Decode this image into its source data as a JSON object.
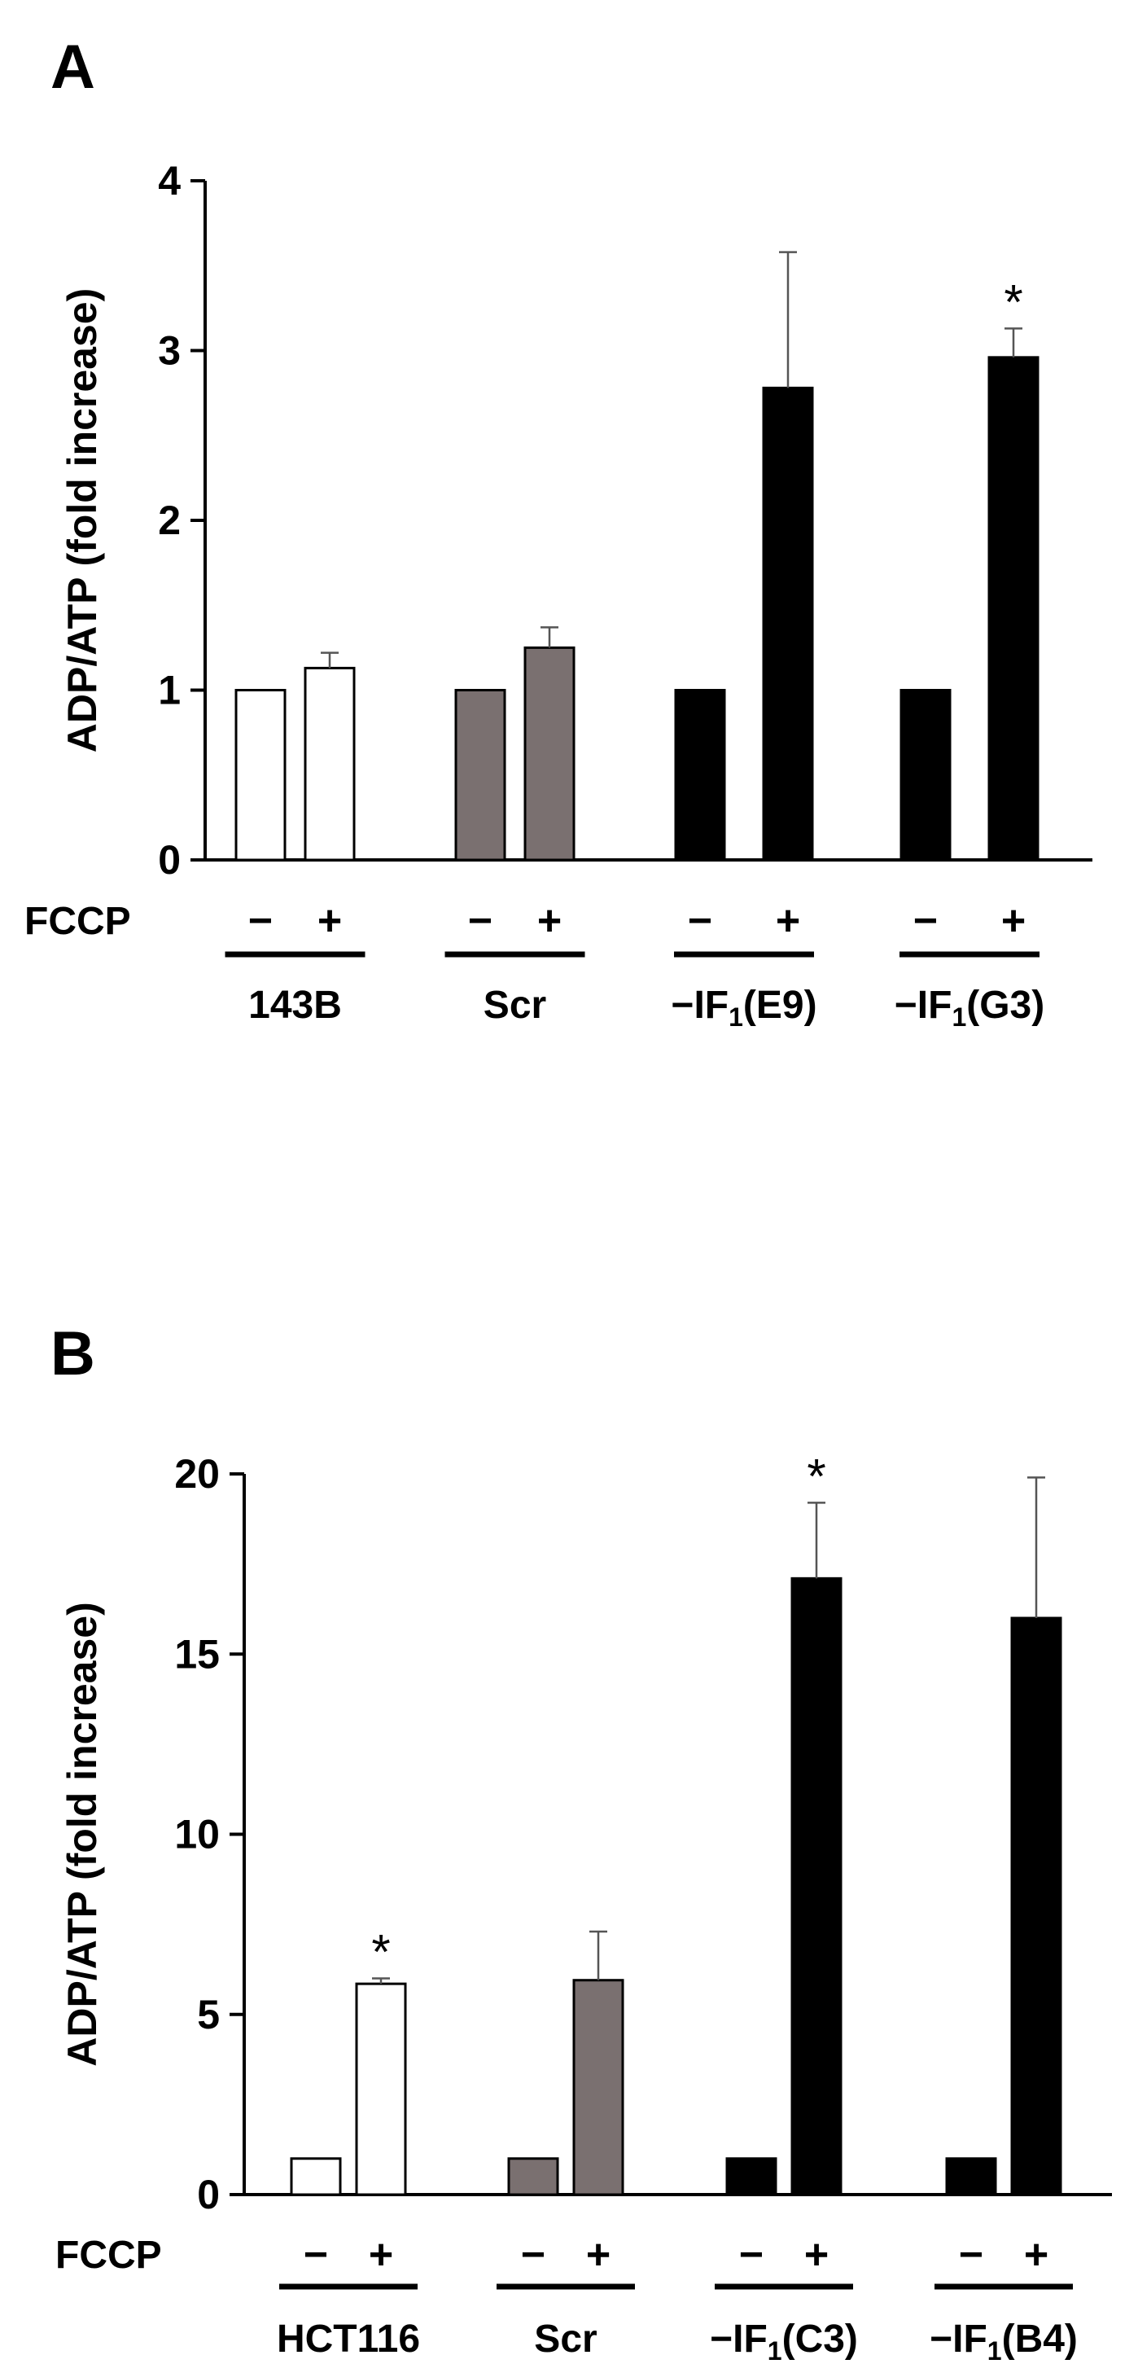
{
  "chart_data": [
    {
      "type": "bar",
      "panel": "A",
      "ylabel": "ADP/ATP (fold increase)",
      "ylim": [
        0,
        4
      ],
      "yticks": [
        "0",
        "1",
        "2",
        "3",
        "4"
      ],
      "ytick_values": [
        0,
        1,
        2,
        3,
        4
      ],
      "row_label": "FCCP",
      "groups": [
        {
          "label": "143B",
          "sub": "",
          "tail": "",
          "color": "#ffffff",
          "bars": [
            {
              "sign": "−",
              "value": 1.0,
              "error": 0,
              "star": ""
            },
            {
              "sign": "+",
              "value": 1.13,
              "error": 0.09,
              "star": ""
            }
          ]
        },
        {
          "label": "Scr",
          "sub": "",
          "tail": "",
          "color": "#7a7070",
          "bars": [
            {
              "sign": "−",
              "value": 1.0,
              "error": 0,
              "star": ""
            },
            {
              "sign": "+",
              "value": 1.25,
              "error": 0.12,
              "star": ""
            }
          ]
        },
        {
          "label": "−IF",
          "sub": "1",
          "tail": "(E9)",
          "color": "#000000",
          "bars": [
            {
              "sign": "−",
              "value": 1.0,
              "error": 0,
              "star": ""
            },
            {
              "sign": "+",
              "value": 2.78,
              "error": 0.8,
              "star": ""
            }
          ]
        },
        {
          "label": "−IF",
          "sub": "1",
          "tail": "(G3)",
          "color": "#000000",
          "bars": [
            {
              "sign": "−",
              "value": 1.0,
              "error": 0,
              "star": ""
            },
            {
              "sign": "+",
              "value": 2.96,
              "error": 0.17,
              "star": "*"
            }
          ]
        }
      ]
    },
    {
      "type": "bar",
      "panel": "B",
      "ylabel": "ADP/ATP (fold increase)",
      "ylim": [
        0,
        20
      ],
      "yticks": [
        "0",
        "5",
        "10",
        "15",
        "20"
      ],
      "ytick_values": [
        0,
        5,
        10,
        15,
        20
      ],
      "row_label": "FCCP",
      "groups": [
        {
          "label": "HCT116",
          "sub": "",
          "tail": "",
          "color": "#ffffff",
          "bars": [
            {
              "sign": "−",
              "value": 1.0,
              "error": 0,
              "star": ""
            },
            {
              "sign": "+",
              "value": 5.85,
              "error": 0.15,
              "star": "*"
            }
          ]
        },
        {
          "label": "Scr",
          "sub": "",
          "tail": "",
          "color": "#7a7070",
          "bars": [
            {
              "sign": "−",
              "value": 1.0,
              "error": 0,
              "star": ""
            },
            {
              "sign": "+",
              "value": 5.95,
              "error": 1.35,
              "star": ""
            }
          ]
        },
        {
          "label": "−IF",
          "sub": "1",
          "tail": "(C3)",
          "color": "#000000",
          "bars": [
            {
              "sign": "−",
              "value": 1.0,
              "error": 0,
              "star": ""
            },
            {
              "sign": "+",
              "value": 17.1,
              "error": 2.1,
              "star": "*"
            }
          ]
        },
        {
          "label": "−IF",
          "sub": "1",
          "tail": "(B4)",
          "color": "#000000",
          "bars": [
            {
              "sign": "−",
              "value": 1.0,
              "error": 0,
              "star": ""
            },
            {
              "sign": "+",
              "value": 16.0,
              "error": 3.9,
              "star": ""
            }
          ]
        }
      ]
    }
  ]
}
